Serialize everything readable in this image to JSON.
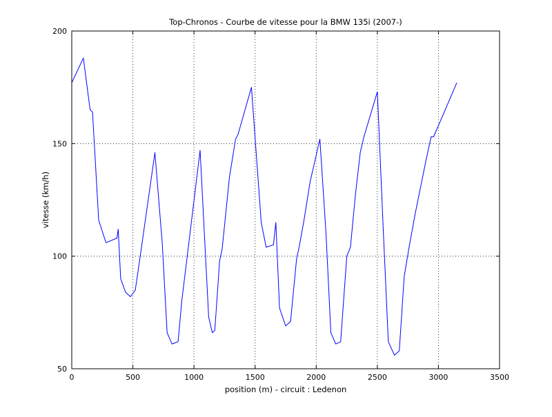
{
  "chart_data": {
    "type": "line",
    "title": "Top-Chronos - Courbe de vitesse pour la BMW 135i (2007-)",
    "xlabel": "position (m) - circuit : Ledenon",
    "ylabel": "vitesse (km/h)",
    "xlim": [
      0,
      3500
    ],
    "ylim": [
      50,
      200
    ],
    "xticks": [
      0,
      500,
      1000,
      1500,
      2000,
      2500,
      3000,
      3500
    ],
    "yticks": [
      50,
      100,
      150,
      200
    ],
    "grid": "dotted",
    "line_color": "#0000ff",
    "series": [
      {
        "x": [
          0,
          95,
          150,
          170,
          220,
          280,
          370,
          380,
          400,
          440,
          480,
          520,
          560,
          680,
          740,
          780,
          820,
          870,
          900,
          1050,
          1120,
          1150,
          1170,
          1210,
          1230,
          1290,
          1340,
          1360,
          1470,
          1550,
          1590,
          1650,
          1670,
          1700,
          1750,
          1790,
          1840,
          1860,
          1900,
          1950,
          2030,
          2080,
          2120,
          2160,
          2200,
          2250,
          2280,
          2320,
          2360,
          2390,
          2500,
          2550,
          2590,
          2640,
          2680,
          2720,
          2760,
          2810,
          2900,
          2940,
          2960,
          3000,
          3150
        ],
        "values": [
          177,
          188,
          165,
          164,
          116,
          106,
          108,
          112,
          90,
          84,
          82,
          85,
          100,
          146,
          106,
          66,
          61,
          62,
          80,
          147,
          73,
          66,
          67,
          98,
          103,
          135,
          152,
          154,
          175,
          115,
          104,
          105,
          115,
          77,
          69,
          71,
          99,
          104,
          116,
          133,
          152,
          110,
          66,
          61,
          62,
          100,
          104,
          127,
          146,
          153,
          173,
          110,
          62,
          56,
          58,
          91,
          104,
          119,
          143,
          153,
          153,
          158,
          177
        ]
      }
    ]
  }
}
